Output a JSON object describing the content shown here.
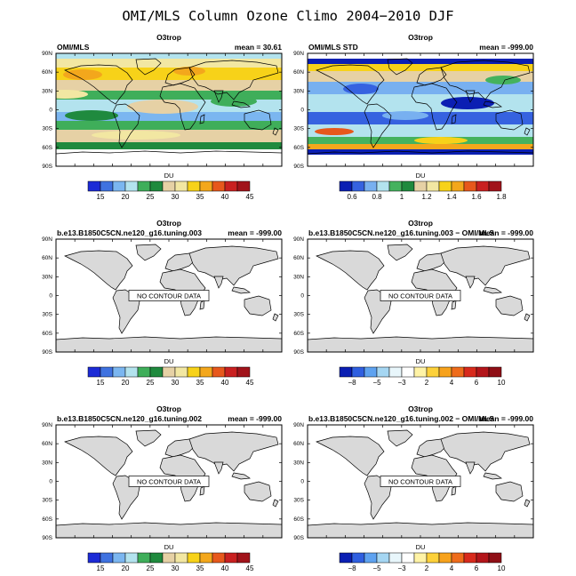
{
  "title": "OMI/MLS Column Ozone Climo 2004−2010 DJF",
  "lat_labels": [
    "90N",
    "60N",
    "30N",
    "0",
    "30S",
    "60S",
    "90S"
  ],
  "panels": [
    {
      "id": "p1",
      "center": "O3trop",
      "left": "OMI/MLS",
      "right": "mean =  30.61",
      "kind": "obs-mean",
      "colorbar": "du",
      "cb_label": "DU"
    },
    {
      "id": "p2",
      "center": "O3trop",
      "left": "OMI/MLS STD",
      "right": "mean = -999.00",
      "kind": "obs-std",
      "colorbar": "std",
      "cb_label": "DU"
    },
    {
      "id": "p3",
      "center": "O3trop",
      "left": "b.e13.B1850C5CN.ne120_g16.tuning.003",
      "right": "mean = -999.00",
      "kind": "empty",
      "nodata": "NO CONTOUR DATA",
      "colorbar": "du",
      "cb_label": "DU"
    },
    {
      "id": "p4",
      "center": "O3trop",
      "left": "b.e13.B1850C5CN.ne120_g16.tuning.003 − OMI/MLS",
      "right": "mean = -999.00",
      "kind": "empty",
      "nodata": "NO CONTOUR DATA",
      "colorbar": "diff",
      "cb_label": "DU"
    },
    {
      "id": "p5",
      "center": "O3trop",
      "left": "b.e13.B1850C5CN.ne120_g16.tuning.002",
      "right": "mean = -999.00",
      "kind": "empty",
      "nodata": "NO CONTOUR DATA",
      "colorbar": "du",
      "cb_label": "DU"
    },
    {
      "id": "p6",
      "center": "O3trop",
      "left": "b.e13.B1850C5CN.ne120_g16.tuning.002 − OMI/MLS",
      "right": "mean = -999.00",
      "kind": "empty",
      "nodata": "NO CONTOUR DATA",
      "colorbar": "diff",
      "cb_label": "DU"
    }
  ],
  "colorbars": {
    "du": {
      "colors": [
        "#1c2bd6",
        "#3f72e0",
        "#7bb6f0",
        "#b3e3ee",
        "#3fae5a",
        "#1f8a3e",
        "#e6d1a5",
        "#f2e7a2",
        "#f7d219",
        "#f3a71c",
        "#e7581c",
        "#c92020",
        "#a1131a"
      ],
      "labels": [
        "15",
        "20",
        "25",
        "30",
        "35",
        "40",
        "45"
      ]
    },
    "std": {
      "colors": [
        "#0b1fb3",
        "#3662e0",
        "#78b0f0",
        "#b3e3ee",
        "#45b25e",
        "#1f8a3e",
        "#e6d1a5",
        "#f2e7a2",
        "#f7d219",
        "#f3a71c",
        "#e7581c",
        "#c92020",
        "#a1131a"
      ],
      "labels": [
        "0.6",
        "0.8",
        "1",
        "1.2",
        "1.4",
        "1.6",
        "1.8"
      ]
    },
    "diff": {
      "colors": [
        "#0b1fb3",
        "#2f5fe0",
        "#5ea2f0",
        "#a5d6f2",
        "#e8f6fb",
        "#ffffff",
        "#fff3a6",
        "#fdd13a",
        "#f7a21c",
        "#ee6c1b",
        "#d82a1c",
        "#b3151a",
        "#8f0f16"
      ],
      "labels": [
        "−8",
        "−5",
        "−3",
        "2",
        "4",
        "6",
        "10"
      ]
    }
  },
  "colors": {
    "land_fill": "#d9d9d9",
    "ozone_low_blue": "#7bb6f0",
    "ozone_green": "#3fae5a",
    "ozone_tan": "#e6d1a5",
    "ozone_yellow": "#f7d219",
    "std_polar_blue": "#0b1fb3",
    "std_cyan": "#b3e3ee"
  }
}
